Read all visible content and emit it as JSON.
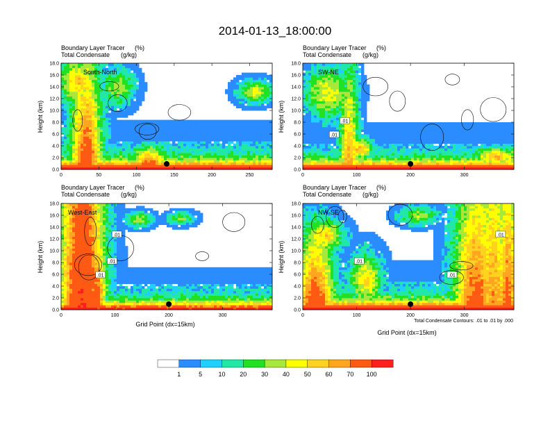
{
  "chart_data": {
    "type": "heatmap",
    "title": "2014-01-13_18:00:00",
    "field_label": "Boundary Layer Tracer",
    "field_unit": "(%)",
    "contour_label": "Total Condensate",
    "contour_unit": "(g/kg)",
    "ylabel": "Height (km)",
    "xlabel": "Grid Point (dx=15km)",
    "ylim": [
      0,
      18
    ],
    "yticks": [
      "0.0",
      "2.0",
      "4.0",
      "6.0",
      "8.0",
      "10.0",
      "12.0",
      "14.0",
      "16.0",
      "18.0"
    ],
    "contour_note": "Total Condensate Contours: .01 to .01 by .000",
    "contour_value_label": ".01",
    "colorbar": {
      "colors": [
        "#ffffff",
        "#2b8cff",
        "#1fd0ff",
        "#22e8a6",
        "#22e022",
        "#a6e83c",
        "#ffff00",
        "#ffd21f",
        "#ffa51f",
        "#ff5a14",
        "#ff1e1e"
      ],
      "labels": [
        "1",
        "5",
        "10",
        "20",
        "30",
        "40",
        "50",
        "60",
        "70",
        "100"
      ]
    },
    "panels": [
      {
        "name": "South-North",
        "xmax": 280,
        "xticks": [
          "0",
          "50",
          "100",
          "150",
          "200",
          "250"
        ],
        "xtick_values": [
          0,
          50,
          100,
          150,
          200,
          250
        ],
        "marker_x": 140,
        "seed": 3
      },
      {
        "name": "SW-NE",
        "xmax": 392,
        "xticks": [
          "0",
          "100",
          "200",
          "300"
        ],
        "xtick_values": [
          0,
          100,
          200,
          300
        ],
        "marker_x": 200,
        "seed": 7
      },
      {
        "name": "West-East",
        "xmax": 392,
        "xticks": [
          "0",
          "100",
          "200",
          "300"
        ],
        "xtick_values": [
          0,
          100,
          200,
          300
        ],
        "marker_x": 200,
        "seed": 11
      },
      {
        "name": "NW-SE",
        "xmax": 392,
        "xticks": [
          "0",
          "100",
          "200",
          "300"
        ],
        "xtick_values": [
          0,
          100,
          200,
          300
        ],
        "marker_x": 200,
        "seed": 17
      }
    ]
  }
}
